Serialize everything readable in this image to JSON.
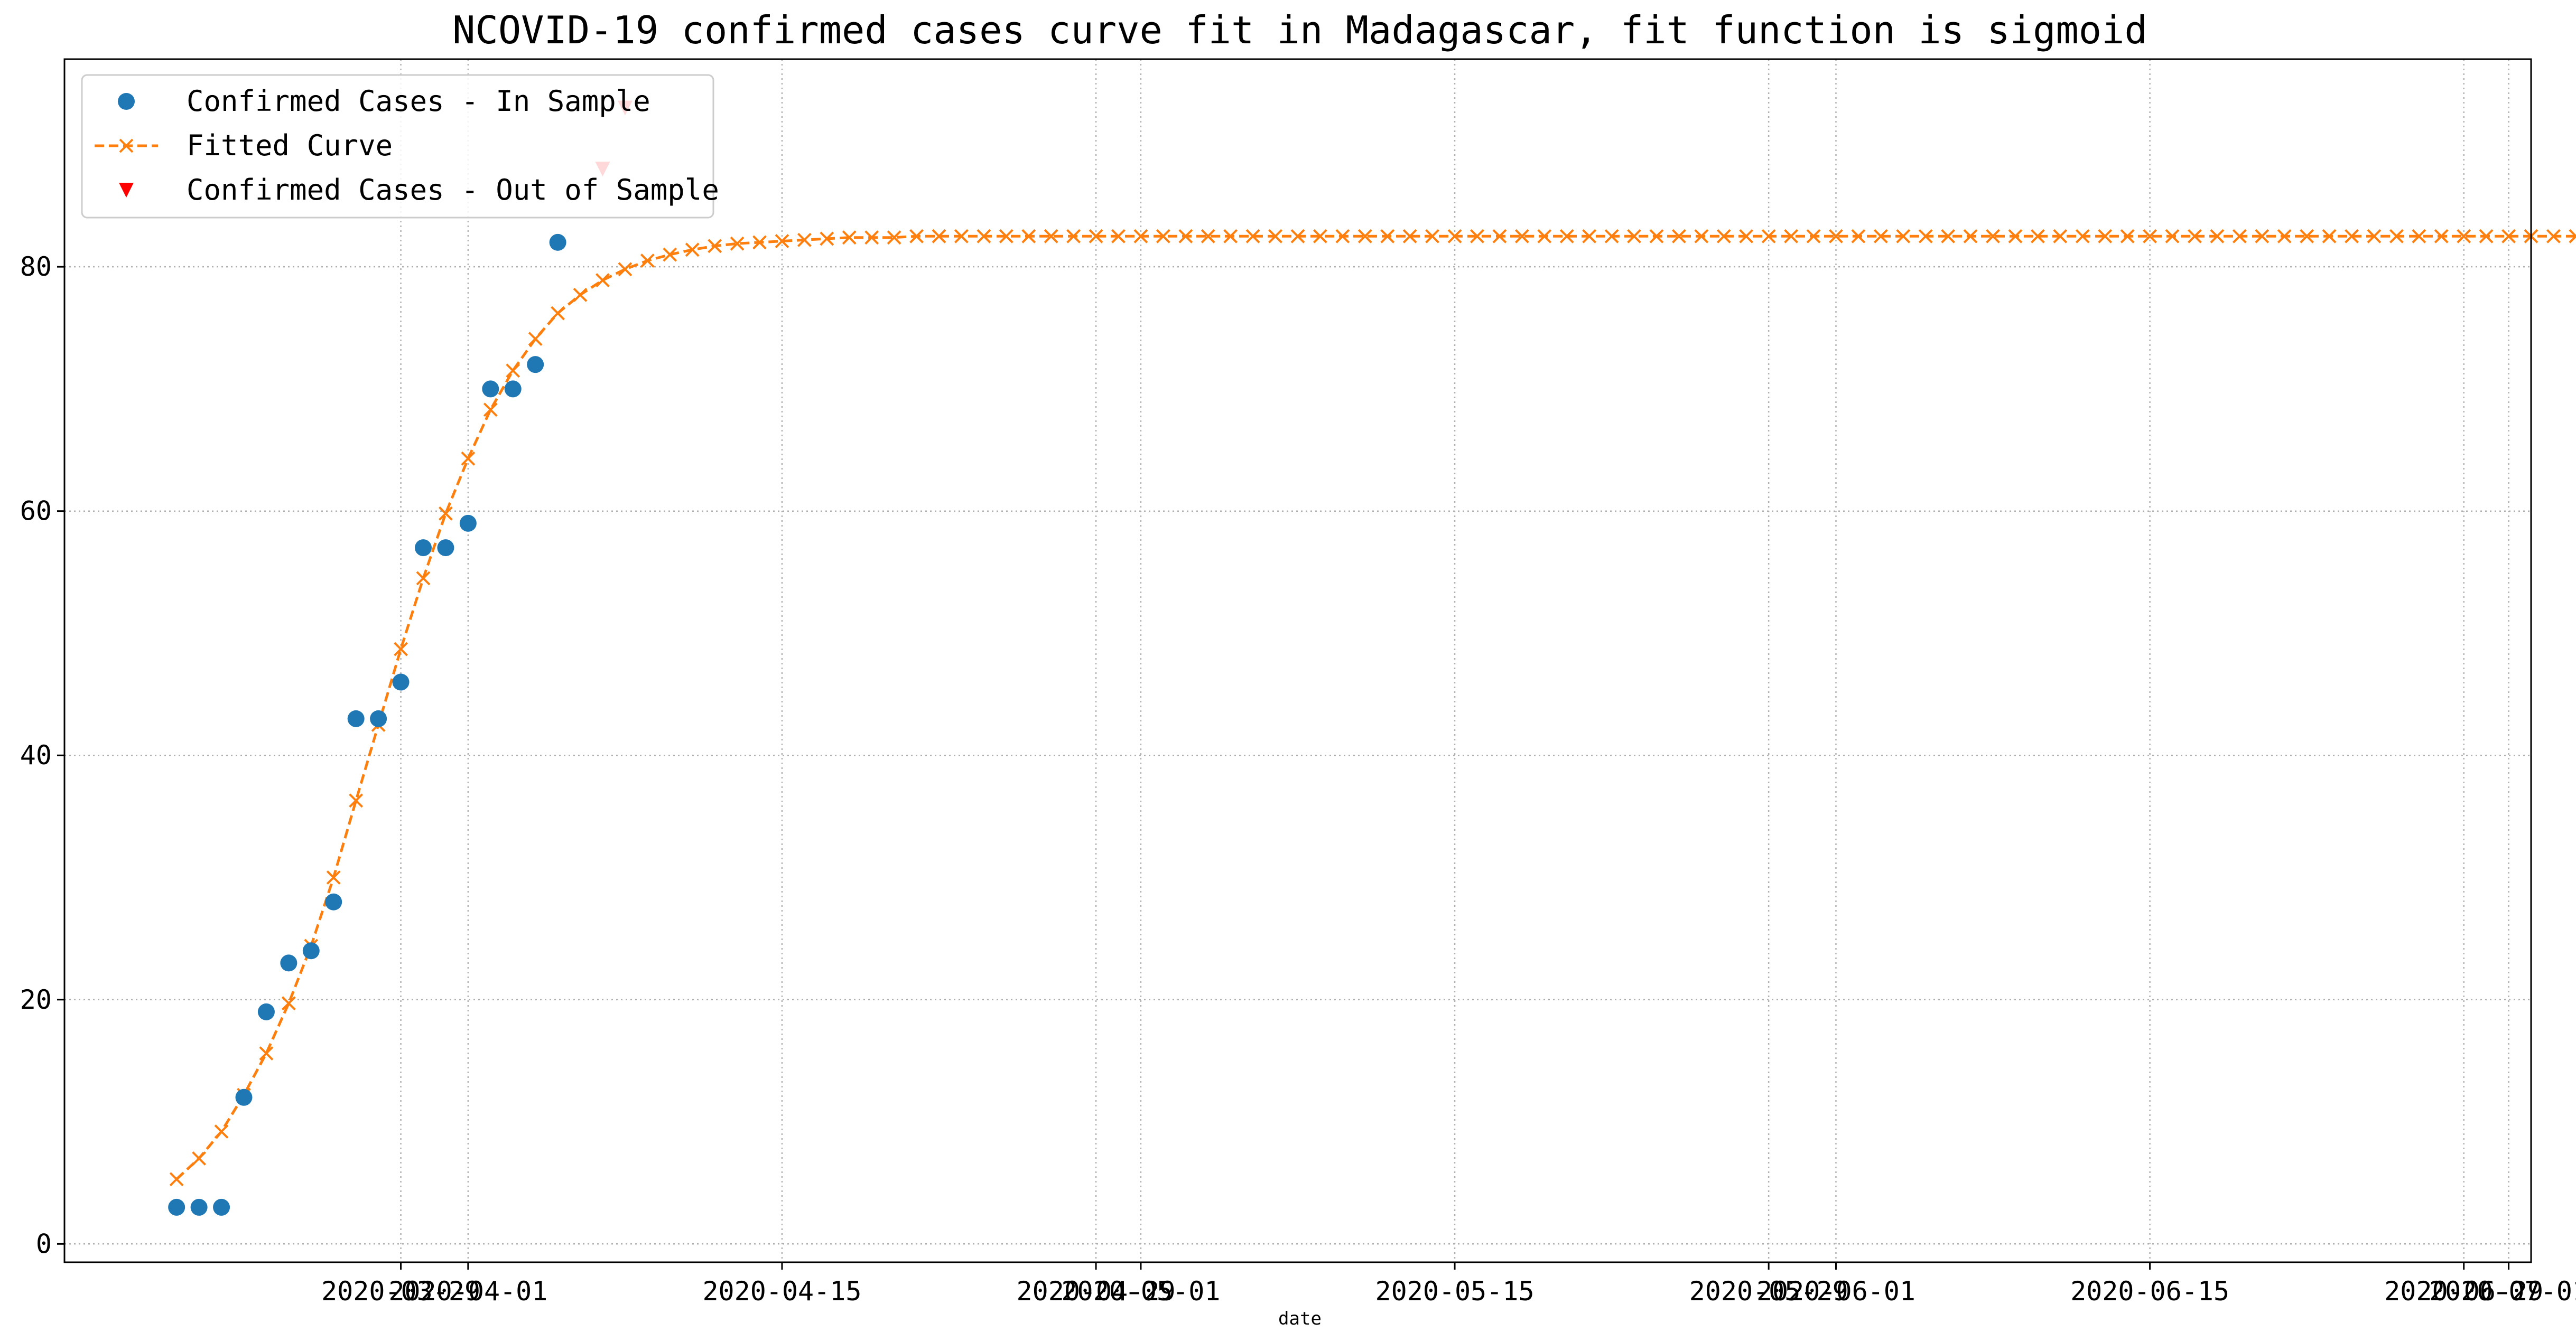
{
  "chart_data": {
    "type": "line",
    "title": "NCOVID-19 confirmed cases curve fit in Madagascar, fit function is sigmoid",
    "xlabel": "date",
    "ylabel": "",
    "x_axis_type": "date",
    "xlim": [
      "2020-03-14",
      "2020-07-02"
    ],
    "ylim": [
      -1.5,
      97
    ],
    "grid": true,
    "legend_position": "top-left",
    "yticks": [
      0,
      20,
      40,
      60,
      80
    ],
    "xticks": [
      {
        "date": "2020-03-29",
        "label": "2020-03-29"
      },
      {
        "date": "2020-04-01",
        "label": "2020-04-01"
      },
      {
        "date": "2020-04-15",
        "label": "2020-04-15"
      },
      {
        "date": "2020-04-29",
        "label": "2020-04-29"
      },
      {
        "date": "2020-05-01",
        "label": "2020-05-01"
      },
      {
        "date": "2020-05-15",
        "label": "2020-05-15"
      },
      {
        "date": "2020-05-29",
        "label": "2020-05-29"
      },
      {
        "date": "2020-06-01",
        "label": "2020-06-01"
      },
      {
        "date": "2020-06-15",
        "label": "2020-06-15"
      },
      {
        "date": "2020-06-29",
        "label": "2020-06-29"
      },
      {
        "date": "2020-07-01",
        "label": "2020-07-01"
      }
    ],
    "series": [
      {
        "name": "Confirmed Cases - In Sample",
        "marker": "circle",
        "color": "#1f77b4",
        "start_date": "2020-03-19",
        "step_days": 1,
        "values": [
          3,
          3,
          3,
          12,
          19,
          23,
          24,
          28,
          43,
          43,
          46,
          57,
          57,
          59,
          70,
          70,
          72,
          82
        ]
      },
      {
        "name": "Fitted Curve",
        "marker": "x",
        "line_style": "dashed",
        "color": "#ff7f0e",
        "start_date": "2020-03-19",
        "step_days": 1,
        "values": [
          5.3,
          7.0,
          9.2,
          12.2,
          15.6,
          19.7,
          24.4,
          30.0,
          36.3,
          42.5,
          48.7,
          54.5,
          59.8,
          64.3,
          68.3,
          71.5,
          74.1,
          76.2,
          77.7,
          78.9,
          79.8,
          80.5,
          81.0,
          81.4,
          81.7,
          81.9,
          82.0,
          82.1,
          82.2,
          82.3,
          82.4,
          82.4,
          82.4,
          82.5,
          82.5,
          82.5,
          82.5,
          82.5,
          82.5,
          82.5,
          82.5,
          82.5,
          82.5,
          82.5,
          82.5,
          82.5,
          82.5,
          82.5,
          82.5,
          82.5,
          82.5,
          82.5,
          82.5,
          82.5,
          82.5,
          82.5,
          82.5,
          82.5,
          82.5,
          82.5,
          82.5,
          82.5,
          82.5,
          82.5,
          82.5,
          82.5,
          82.5,
          82.5,
          82.5,
          82.5,
          82.5,
          82.5,
          82.5,
          82.5,
          82.5,
          82.5,
          82.5,
          82.5,
          82.5,
          82.5,
          82.5,
          82.5,
          82.5,
          82.5,
          82.5,
          82.5,
          82.5,
          82.5,
          82.5,
          82.5,
          82.5,
          82.5,
          82.5,
          82.5,
          82.5,
          82.5,
          82.5,
          82.5,
          82.5,
          82.5,
          82.5,
          82.5,
          82.5,
          82.5,
          82.5,
          82.5,
          82.5,
          82.5
        ]
      },
      {
        "name": "Confirmed Cases - Out of Sample",
        "marker": "triangle-down",
        "color": "#ff0000",
        "points": [
          {
            "date": "2020-04-07",
            "value": 88
          },
          {
            "date": "2020-04-08",
            "value": 93
          }
        ]
      }
    ]
  }
}
